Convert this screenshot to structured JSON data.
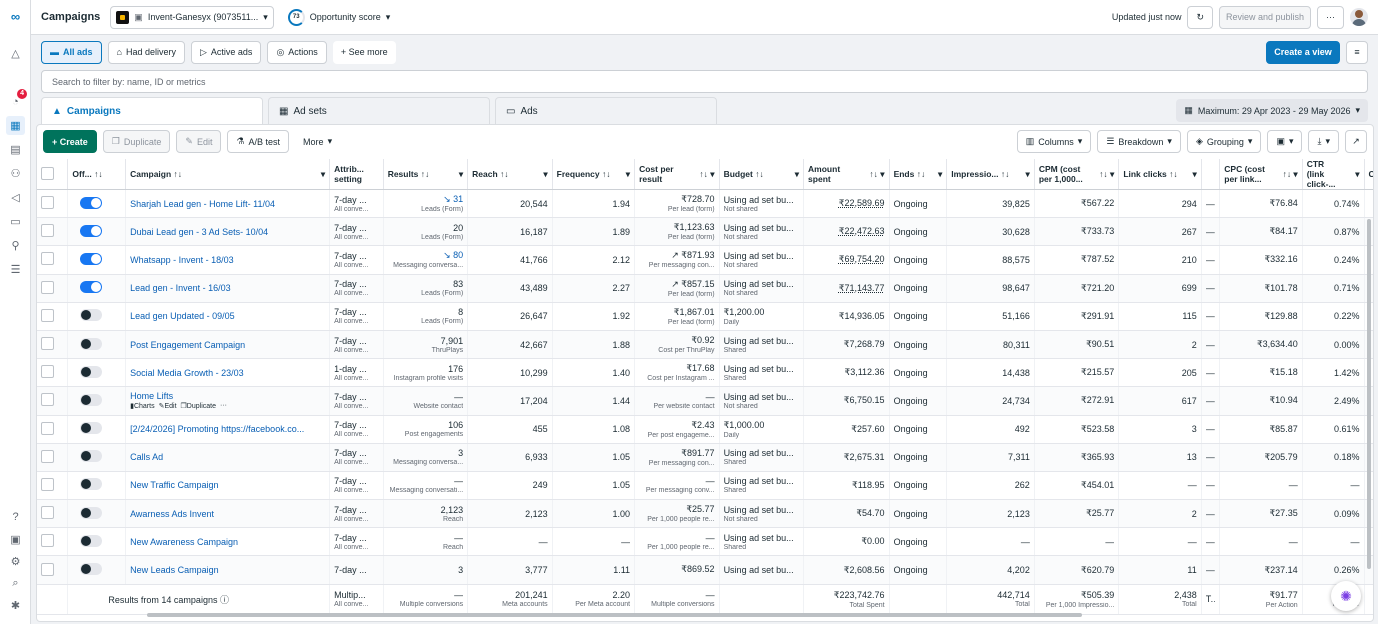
{
  "nav": {
    "logo": "∞",
    "notif_badge": "4",
    "items": [
      "bell-icon",
      "notifications-icon",
      "campaigns-grid-icon",
      "pages-icon",
      "audience-icon",
      "megaphone-icon",
      "billing-icon",
      "people-icon",
      "menu-icon"
    ],
    "bottom": [
      "help-icon",
      "settings-panel-icon",
      "gear-icon",
      "search-icon",
      "bug-icon"
    ]
  },
  "topbar": {
    "title": "Campaigns",
    "account": "Invent-Ganesyx (9073511...",
    "opp_score": "73",
    "opp_label": "Opportunity score",
    "updated": "Updated just now",
    "review_publish": "Review and publish",
    "more": "···"
  },
  "filters": {
    "all_ads": "All ads",
    "had_delivery": "Had delivery",
    "active_ads": "Active ads",
    "actions": "Actions",
    "see_more": "+ See more",
    "create_view": "Create a view"
  },
  "search": {
    "placeholder": "Search to filter by: name, ID or metrics"
  },
  "tabs": {
    "campaigns": "Campaigns",
    "adsets": "Ad sets",
    "ads": "Ads",
    "date": "Maximum: 29 Apr 2023 - 29 May 2026"
  },
  "toolbar": {
    "create": "+ Create",
    "duplicate": "Duplicate",
    "edit": "Edit",
    "ab_test": "A/B test",
    "more": "More",
    "columns": "Columns",
    "breakdown": "Breakdown",
    "grouping": "Grouping"
  },
  "headers": {
    "off": "Off... ↑↓",
    "campaign": "Campaign ↑↓",
    "attrib": "Attrib... setting",
    "results": "Results ↑↓",
    "reach": "Reach ↑↓",
    "frequency": "Frequency ↑↓",
    "cpr": "Cost per result",
    "budget": "Budget ↑↓",
    "amount": "Amount spent",
    "ends": "Ends ↑↓",
    "impressions": "Impressio... ↑↓",
    "cpm": "CPM (cost per 1,000...",
    "clicks": "Link clicks ↑↓",
    "dash": "",
    "cpc": "CPC (cost per link...",
    "ctr": "CTR (link click-...",
    "cl": "Cl"
  },
  "rows": [
    {
      "on": true,
      "name": "Sharjah Lead gen - Home Lift- 11/04",
      "attrib": "7-day ...",
      "attrib_sub": "All conve...",
      "results": "↘ 31",
      "results_sub": "Leads (Form)",
      "reach": "20,544",
      "freq": "1.94",
      "cpr": "₹728.70",
      "cpr_sub": "Per lead (form)",
      "budget": "Using ad set bu...",
      "budget_sub": "Not shared",
      "amount": "₹22,589.69",
      "ends": "Ongoing",
      "impr": "39,825",
      "cpm": "₹567.22",
      "clicks": "294",
      "dash": "—",
      "cpc": "₹76.84",
      "ctr": "0.74%"
    },
    {
      "on": true,
      "name": "Dubai Lead gen - 3 Ad Sets- 10/04",
      "attrib": "7-day ...",
      "attrib_sub": "All conve...",
      "results": "20",
      "results_sub": "Leads (Form)",
      "reach": "16,187",
      "freq": "1.89",
      "cpr": "₹1,123.63",
      "cpr_sub": "Per lead (form)",
      "budget": "Using ad set bu...",
      "budget_sub": "Not shared",
      "amount": "₹22,472.63",
      "ends": "Ongoing",
      "impr": "30,628",
      "cpm": "₹733.73",
      "clicks": "267",
      "dash": "—",
      "cpc": "₹84.17",
      "ctr": "0.87%"
    },
    {
      "on": true,
      "name": "Whatsapp - Invent - 18/03",
      "attrib": "7-day ...",
      "attrib_sub": "All conve...",
      "results": "↘ 80",
      "results_sub": "Messaging conversa...",
      "reach": "41,766",
      "freq": "2.12",
      "cpr": "↗ ₹871.93",
      "cpr_sub": "Per messaging con...",
      "budget": "Using ad set bu...",
      "budget_sub": "Not shared",
      "amount": "₹69,754.20",
      "ends": "Ongoing",
      "impr": "88,575",
      "cpm": "₹787.52",
      "clicks": "210",
      "dash": "—",
      "cpc": "₹332.16",
      "ctr": "0.24%"
    },
    {
      "on": true,
      "name": "Lead gen - Invent - 16/03",
      "attrib": "7-day ...",
      "attrib_sub": "All conve...",
      "results": "83",
      "results_sub": "Leads (Form)",
      "reach": "43,489",
      "freq": "2.27",
      "cpr": "↗ ₹857.15",
      "cpr_sub": "Per lead (form)",
      "budget": "Using ad set bu...",
      "budget_sub": "Not shared",
      "amount": "₹71,143.77",
      "ends": "Ongoing",
      "impr": "98,647",
      "cpm": "₹721.20",
      "clicks": "699",
      "dash": "—",
      "cpc": "₹101.78",
      "ctr": "0.71%"
    },
    {
      "on": false,
      "name": "Lead gen Updated - 09/05",
      "attrib": "7-day ...",
      "attrib_sub": "All conve...",
      "results": "8",
      "results_sub": "Leads (Form)",
      "reach": "26,647",
      "freq": "1.92",
      "cpr": "₹1,867.01",
      "cpr_sub": "Per lead (form)",
      "budget": "₹1,200.00",
      "budget_sub": "Daily",
      "amount": "₹14,936.05",
      "ends": "Ongoing",
      "impr": "51,166",
      "cpm": "₹291.91",
      "clicks": "115",
      "dash": "—",
      "cpc": "₹129.88",
      "ctr": "0.22%"
    },
    {
      "on": false,
      "name": "Post Engagement Campaign",
      "attrib": "7-day ...",
      "attrib_sub": "All conve...",
      "results": "7,901",
      "results_sub": "ThruPlays",
      "reach": "42,667",
      "freq": "1.88",
      "cpr": "₹0.92",
      "cpr_sub": "Cost per ThruPlay",
      "budget": "Using ad set bu...",
      "budget_sub": "Shared",
      "amount": "₹7,268.79",
      "ends": "Ongoing",
      "impr": "80,311",
      "cpm": "₹90.51",
      "clicks": "2",
      "dash": "—",
      "cpc": "₹3,634.40",
      "ctr": "0.00%"
    },
    {
      "on": false,
      "name": "Social Media Growth - 23/03",
      "attrib": "1-day ...",
      "attrib_sub": "All conve...",
      "results": "176",
      "results_sub": "Instagram profile visits",
      "reach": "10,299",
      "freq": "1.40",
      "cpr": "₹17.68",
      "cpr_sub": "Cost per Instagram ...",
      "budget": "Using ad set bu...",
      "budget_sub": "Shared",
      "amount": "₹3,112.36",
      "ends": "Ongoing",
      "impr": "14,438",
      "cpm": "₹215.57",
      "clicks": "205",
      "dash": "—",
      "cpc": "₹15.18",
      "ctr": "1.42%"
    },
    {
      "on": false,
      "name": "Home Lifts",
      "attrib": "7-day ...",
      "attrib_sub": "All conve...",
      "results": "—",
      "results_sub": "Website contact",
      "reach": "17,204",
      "freq": "1.44",
      "cpr": "—",
      "cpr_sub": "Per website contact",
      "budget": "Using ad set bu...",
      "budget_sub": "Not shared",
      "amount": "₹6,750.15",
      "ends": "Ongoing",
      "impr": "24,734",
      "cpm": "₹272.91",
      "clicks": "617",
      "dash": "—",
      "cpc": "₹10.94",
      "ctr": "2.49%",
      "actions": {
        "charts": "Charts",
        "edit": "Edit",
        "duplicate": "Duplicate",
        "more": "···"
      }
    },
    {
      "on": false,
      "name": "[2/24/2026] Promoting https://facebook.co...",
      "attrib": "7-day ...",
      "attrib_sub": "All conve...",
      "results": "106",
      "results_sub": "Post engagements",
      "reach": "455",
      "freq": "1.08",
      "cpr": "₹2.43",
      "cpr_sub": "Per post engageme...",
      "budget": "₹1,000.00",
      "budget_sub": "Daily",
      "amount": "₹257.60",
      "ends": "Ongoing",
      "impr": "492",
      "cpm": "₹523.58",
      "clicks": "3",
      "dash": "—",
      "cpc": "₹85.87",
      "ctr": "0.61%"
    },
    {
      "on": false,
      "name": "Calls Ad",
      "attrib": "7-day ...",
      "attrib_sub": "All conve...",
      "results": "3",
      "results_sub": "Messaging conversa...",
      "reach": "6,933",
      "freq": "1.05",
      "cpr": "₹891.77",
      "cpr_sub": "Per messaging con...",
      "budget": "Using ad set bu...",
      "budget_sub": "Shared",
      "amount": "₹2,675.31",
      "ends": "Ongoing",
      "impr": "7,311",
      "cpm": "₹365.93",
      "clicks": "13",
      "dash": "—",
      "cpc": "₹205.79",
      "ctr": "0.18%"
    },
    {
      "on": false,
      "name": "New Traffic Campaign",
      "attrib": "7-day ...",
      "attrib_sub": "All conve...",
      "results": "—",
      "results_sub": "Messaging conversati...",
      "reach": "249",
      "freq": "1.05",
      "cpr": "—",
      "cpr_sub": "Per messaging conv...",
      "budget": "Using ad set bu...",
      "budget_sub": "Shared",
      "amount": "₹118.95",
      "ends": "Ongoing",
      "impr": "262",
      "cpm": "₹454.01",
      "clicks": "—",
      "dash": "—",
      "cpc": "—",
      "ctr": "—"
    },
    {
      "on": false,
      "name": "Awarness Ads Invent",
      "attrib": "7-day ...",
      "attrib_sub": "All conve...",
      "results": "2,123",
      "results_sub": "Reach",
      "reach": "2,123",
      "freq": "1.00",
      "cpr": "₹25.77",
      "cpr_sub": "Per 1,000 people re...",
      "budget": "Using ad set bu...",
      "budget_sub": "Not shared",
      "amount": "₹54.70",
      "ends": "Ongoing",
      "impr": "2,123",
      "cpm": "₹25.77",
      "clicks": "2",
      "dash": "—",
      "cpc": "₹27.35",
      "ctr": "0.09%"
    },
    {
      "on": false,
      "name": "New Awareness Campaign",
      "attrib": "7-day ...",
      "attrib_sub": "All conve...",
      "results": "—",
      "results_sub": "Reach",
      "reach": "—",
      "freq": "—",
      "cpr": "—",
      "cpr_sub": "Per 1,000 people re...",
      "budget": "Using ad set bu...",
      "budget_sub": "Shared",
      "amount": "₹0.00",
      "ends": "Ongoing",
      "impr": "—",
      "cpm": "—",
      "clicks": "—",
      "dash": "—",
      "cpc": "—",
      "ctr": "—"
    },
    {
      "on": false,
      "name": "New Leads Campaign",
      "attrib": "7-day ...",
      "attrib_sub": "",
      "results": "3",
      "results_sub": "",
      "reach": "3,777",
      "freq": "1.11",
      "cpr": "₹869.52",
      "cpr_sub": "",
      "budget": "Using ad set bu...",
      "budget_sub": "",
      "amount": "₹2,608.56",
      "ends": "Ongoing",
      "impr": "4,202",
      "cpm": "₹620.79",
      "clicks": "11",
      "dash": "—",
      "cpc": "₹237.14",
      "ctr": "0.26%"
    }
  ],
  "summary": {
    "label": "Results from 14 campaigns",
    "attrib": "Multip...",
    "attrib_sub": "All conve...",
    "results": "—",
    "results_sub": "Multiple conversions",
    "reach": "201,241",
    "reach_sub": "Meta accounts",
    "freq": "2.20",
    "freq_sub": "Per Meta account",
    "cpr": "—",
    "cpr_sub": "Multiple conversions",
    "amount": "₹223,742.76",
    "amount_sub": "Total Spent",
    "impr": "442,714",
    "impr_sub": "Total",
    "cpm": "₹505.39",
    "cpm_sub": "Per 1,000 Impressio...",
    "clicks": "2,438",
    "clicks_sub": "Total",
    "dash": "To...",
    "cpc": "₹91.77",
    "cpc_sub": "Per Action",
    "ctr": "0.",
    "ctr_sub": "Per Impr"
  }
}
